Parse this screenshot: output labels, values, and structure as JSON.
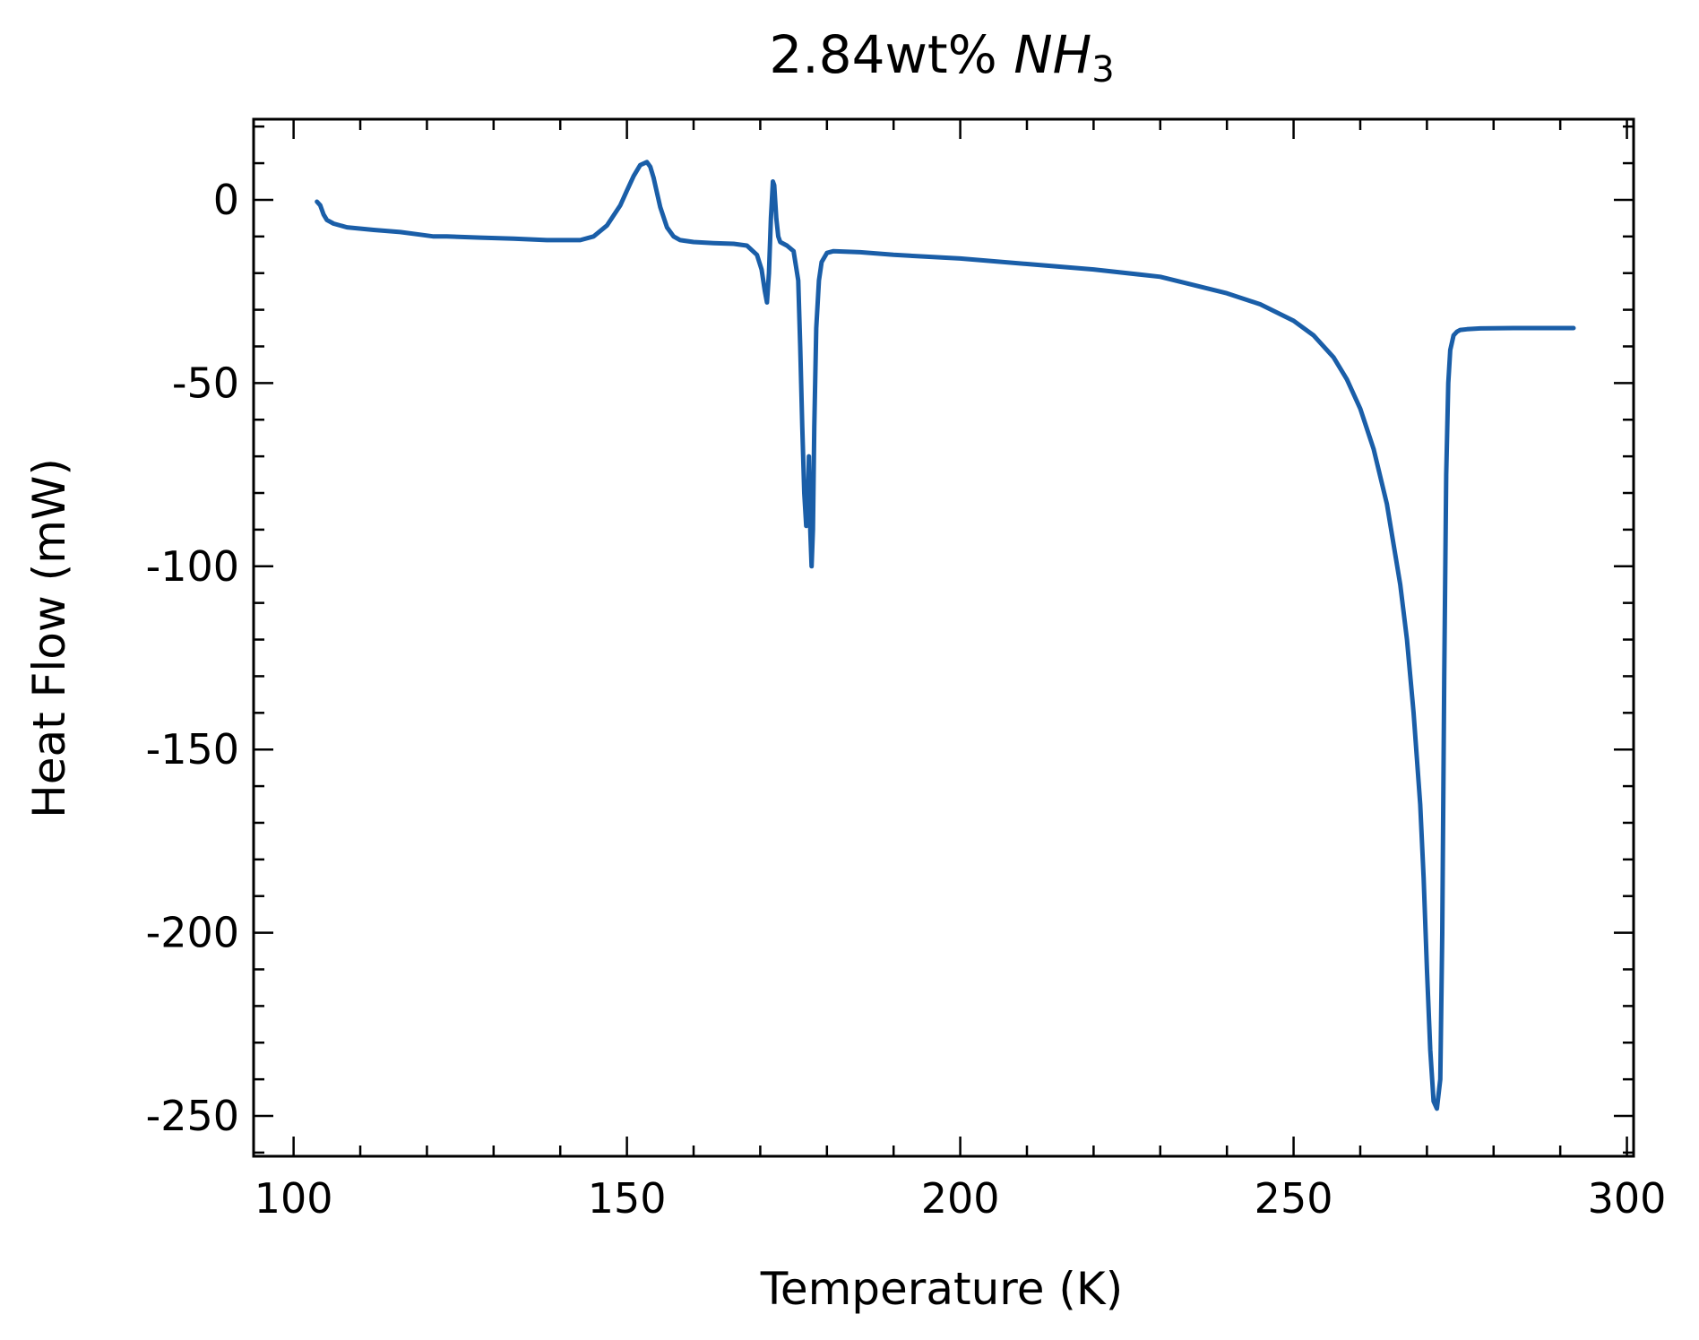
{
  "chart_data": {
    "type": "line",
    "title": "2.84wt% ",
    "title_formula": "NH",
    "title_subscript": "3",
    "xlabel": "Temperature (K)",
    "ylabel": "Heat Flow (mW)",
    "xlim": [
      94,
      301
    ],
    "ylim": [
      -261,
      22
    ],
    "xticks": [
      100,
      150,
      200,
      250,
      300
    ],
    "xtick_labels": [
      "100",
      "150",
      "200",
      "250",
      "300"
    ],
    "yticks": [
      0,
      -50,
      -100,
      -150,
      -200,
      -250
    ],
    "ytick_labels": [
      "0",
      "-50",
      "-100",
      "-150",
      "-200",
      "-250"
    ],
    "grid": false,
    "series": [
      {
        "color": "#1a5ea8",
        "x": [
          103.5,
          104.0,
          104.5,
          105.0,
          106.0,
          108.0,
          112.0,
          116.0,
          119.0,
          121.0,
          123.0,
          128.0,
          133.0,
          138.0,
          143.0,
          145.0,
          147.0,
          149.0,
          150.0,
          151.0,
          152.0,
          153.0,
          153.5,
          154.0,
          154.5,
          155.0,
          156.0,
          157.0,
          158.0,
          160.0,
          163.0,
          166.0,
          168.0,
          169.5,
          170.2,
          170.7,
          171.0,
          171.3,
          171.6,
          171.9,
          172.1,
          172.4,
          172.7,
          173.0,
          173.5,
          174.0,
          175.0,
          175.7,
          176.0,
          176.3,
          176.6,
          176.9,
          177.1,
          177.3,
          177.5,
          177.7,
          177.9,
          178.1,
          178.4,
          178.8,
          179.2,
          180.0,
          181.0,
          185.0,
          190.0,
          200.0,
          210.0,
          220.0,
          230.0,
          240.0,
          245.0,
          250.0,
          253.0,
          256.0,
          258.0,
          260.0,
          262.0,
          264.0,
          266.0,
          267.0,
          268.0,
          269.0,
          269.5,
          270.0,
          270.5,
          271.0,
          271.5,
          272.0,
          272.3,
          272.6,
          272.9,
          273.2,
          273.5,
          274.0,
          274.5,
          275.0,
          276.0,
          278.0,
          283.0,
          288.0,
          292.0
        ],
        "values": [
          -0.5,
          -1.5,
          -4.0,
          -5.5,
          -6.5,
          -7.5,
          -8.2,
          -8.8,
          -9.5,
          -10.0,
          -10.0,
          -10.3,
          -10.6,
          -11.0,
          -11.0,
          -10.0,
          -7.0,
          -1.5,
          2.5,
          6.5,
          9.5,
          10.3,
          9.0,
          6.0,
          2.0,
          -2.0,
          -7.5,
          -10.0,
          -11.0,
          -11.5,
          -11.8,
          -12.0,
          -12.5,
          -15.0,
          -19.0,
          -25.0,
          -28.0,
          -20.0,
          -5.0,
          5.0,
          4.0,
          -5.0,
          -10.0,
          -11.5,
          -12.0,
          -12.5,
          -14.0,
          -22.0,
          -40.0,
          -62.0,
          -80.0,
          -89.0,
          -86.0,
          -70.0,
          -90.0,
          -100.0,
          -90.0,
          -62.0,
          -35.0,
          -22.0,
          -17.0,
          -14.5,
          -14.0,
          -14.3,
          -15.0,
          -16.0,
          -17.5,
          -19.0,
          -21.0,
          -25.5,
          -28.5,
          -33.0,
          -37.0,
          -43.0,
          -49.0,
          -57.0,
          -68.0,
          -83.0,
          -105.0,
          -120.0,
          -140.0,
          -165.0,
          -185.0,
          -210.0,
          -232.0,
          -246.0,
          -248.0,
          -240.0,
          -200.0,
          -130.0,
          -75.0,
          -50.0,
          -41.0,
          -37.0,
          -36.0,
          -35.5,
          -35.3,
          -35.1,
          -35.0,
          -35.0,
          -35.0
        ]
      }
    ]
  }
}
